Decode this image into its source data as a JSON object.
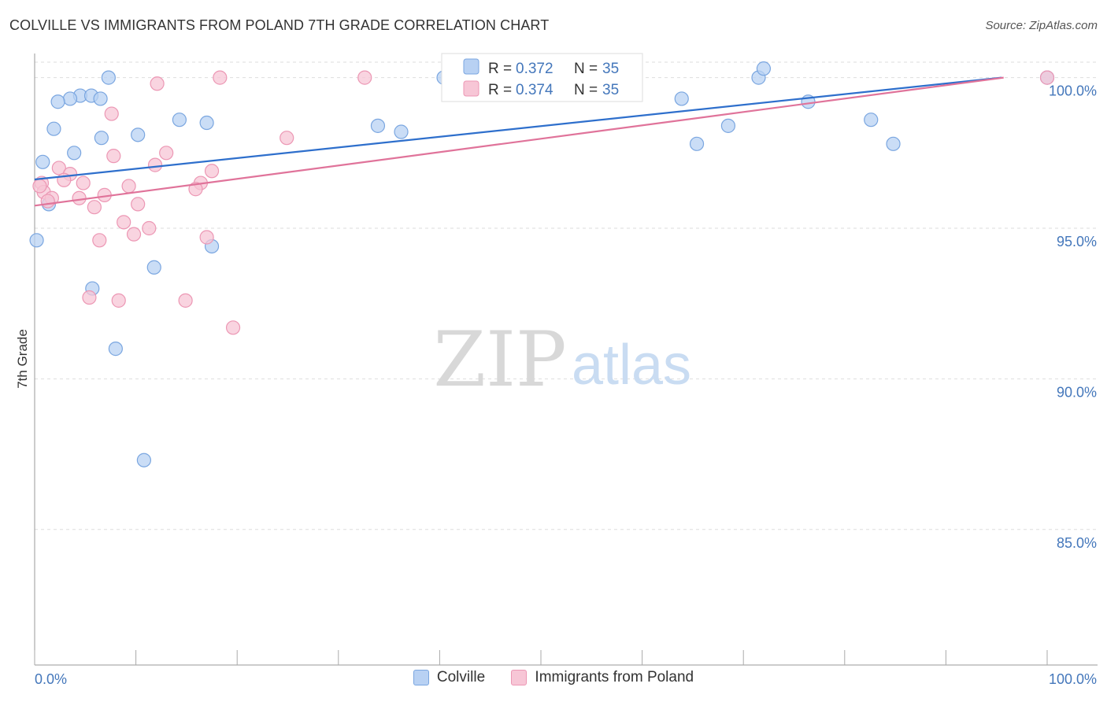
{
  "header": {
    "title": "COLVILLE VS IMMIGRANTS FROM POLAND 7TH GRADE CORRELATION CHART",
    "source": "Source: ZipAtlas.com"
  },
  "watermark": {
    "zip": "ZIP",
    "atlas": "atlas"
  },
  "colors": {
    "blue_fill": "#b8d1f3",
    "blue_stroke": "#7aa6e0",
    "blue_line": "#2e6fcc",
    "pink_fill": "#f7c6d6",
    "pink_stroke": "#ec97b4",
    "pink_line": "#e0739a",
    "axis_text": "#4477bb",
    "grid": "#dddddd"
  },
  "chart_data": {
    "type": "scatter",
    "title": "COLVILLE VS IMMIGRANTS FROM POLAND 7TH GRADE CORRELATION CHART",
    "xlabel": "",
    "ylabel": "7th Grade",
    "xlim": [
      0,
      100
    ],
    "ylim": [
      80.5,
      100.8
    ],
    "x_tick_labels": [
      "0.0%",
      "100.0%"
    ],
    "y_ticks": [
      {
        "value": 100,
        "label": "100.0%"
      },
      {
        "value": 95,
        "label": "95.0%"
      },
      {
        "value": 90,
        "label": "90.0%"
      },
      {
        "value": 85,
        "label": "85.0%"
      }
    ],
    "legend_top": [
      {
        "r_label": "R =",
        "r_value": "0.372",
        "n_label": "N =",
        "n_value": "35"
      },
      {
        "r_label": "R =",
        "r_value": "0.374",
        "n_label": "N =",
        "n_value": "35"
      }
    ],
    "series": [
      {
        "name": "Colville",
        "trend": {
          "x0": 0,
          "y0": 96.62,
          "x1": 95.5,
          "y1": 100.0
        },
        "points": [
          [
            7.3,
            100.0
          ],
          [
            40.4,
            100.0
          ],
          [
            42.3,
            100.0
          ],
          [
            46.0,
            100.0
          ],
          [
            53.5,
            100.0
          ],
          [
            71.5,
            100.0
          ],
          [
            100.0,
            100.0
          ],
          [
            4.5,
            99.4
          ],
          [
            5.6,
            99.4
          ],
          [
            3.5,
            99.3
          ],
          [
            6.5,
            99.3
          ],
          [
            2.3,
            99.2
          ],
          [
            63.9,
            99.3
          ],
          [
            76.4,
            99.2
          ],
          [
            14.3,
            98.6
          ],
          [
            17.0,
            98.5
          ],
          [
            33.9,
            98.4
          ],
          [
            68.5,
            98.4
          ],
          [
            82.6,
            98.6
          ],
          [
            1.9,
            98.3
          ],
          [
            36.2,
            98.2
          ],
          [
            10.2,
            98.1
          ],
          [
            6.6,
            98.0
          ],
          [
            65.4,
            97.8
          ],
          [
            84.8,
            97.8
          ],
          [
            3.9,
            97.5
          ],
          [
            0.8,
            97.2
          ],
          [
            1.4,
            95.8
          ],
          [
            0.2,
            94.6
          ],
          [
            17.5,
            94.4
          ],
          [
            11.8,
            93.7
          ],
          [
            5.7,
            93.0
          ],
          [
            8.0,
            91.0
          ],
          [
            10.8,
            87.3
          ],
          [
            72.0,
            100.3
          ]
        ]
      },
      {
        "name": "Immigrants from Poland",
        "trend": {
          "x0": 0,
          "y0": 95.75,
          "x1": 95.7,
          "y1": 100.0
        },
        "points": [
          [
            18.3,
            100.0
          ],
          [
            32.6,
            100.0
          ],
          [
            100.0,
            100.0
          ],
          [
            12.1,
            99.8
          ],
          [
            7.6,
            98.8
          ],
          [
            24.9,
            98.0
          ],
          [
            7.8,
            97.4
          ],
          [
            13.0,
            97.5
          ],
          [
            11.9,
            97.1
          ],
          [
            2.4,
            97.0
          ],
          [
            17.5,
            96.9
          ],
          [
            3.5,
            96.8
          ],
          [
            0.7,
            96.5
          ],
          [
            2.9,
            96.6
          ],
          [
            4.8,
            96.5
          ],
          [
            9.3,
            96.4
          ],
          [
            16.4,
            96.5
          ],
          [
            15.9,
            96.3
          ],
          [
            0.9,
            96.2
          ],
          [
            1.7,
            96.0
          ],
          [
            1.3,
            95.9
          ],
          [
            4.4,
            96.0
          ],
          [
            6.9,
            96.1
          ],
          [
            10.2,
            95.8
          ],
          [
            5.9,
            95.7
          ],
          [
            8.8,
            95.2
          ],
          [
            11.3,
            95.0
          ],
          [
            9.8,
            94.8
          ],
          [
            17.0,
            94.7
          ],
          [
            6.4,
            94.6
          ],
          [
            5.4,
            92.7
          ],
          [
            8.3,
            92.6
          ],
          [
            14.9,
            92.6
          ],
          [
            19.6,
            91.7
          ],
          [
            0.5,
            96.4
          ]
        ]
      }
    ]
  }
}
